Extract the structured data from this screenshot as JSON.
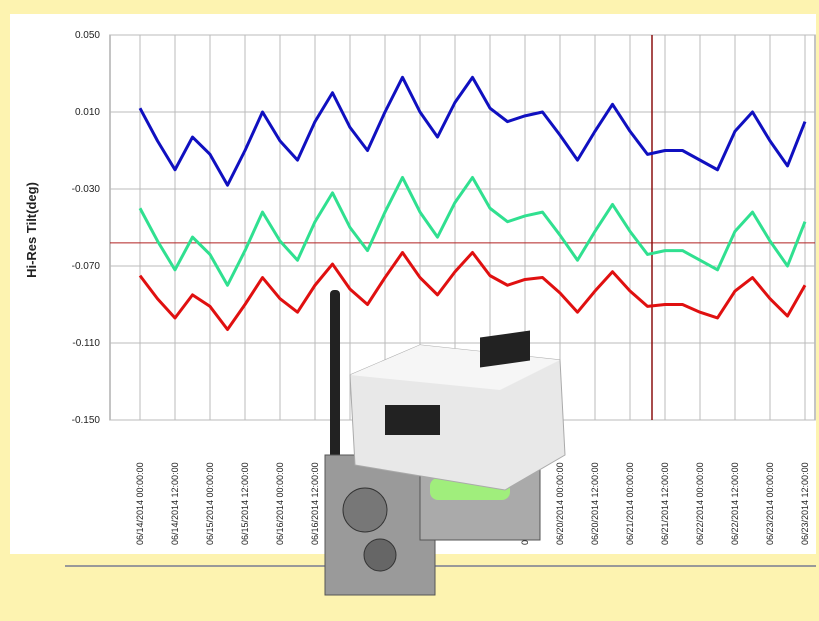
{
  "chart_data": {
    "type": "line",
    "y_label": "Hi-Res Tilt(deg)",
    "ylim": [
      -0.15,
      0.05
    ],
    "yticks": [
      {
        "value": 0.05,
        "label": "0.050"
      },
      {
        "value": 0.01,
        "label": "0.010"
      },
      {
        "value": -0.03,
        "label": "-0.030"
      },
      {
        "value": -0.07,
        "label": "-0.070"
      },
      {
        "value": -0.11,
        "label": "-0.110"
      },
      {
        "value": -0.15,
        "label": "-0.150"
      }
    ],
    "grid": true,
    "hline": -0.058,
    "x": [
      "06/14/2014 00:00:00",
      "06/14/2014 06:00:00",
      "06/14/2014 12:00:00",
      "06/14/2014 18:00:00",
      "06/15/2014 00:00:00",
      "06/15/2014 06:00:00",
      "06/15/2014 12:00:00",
      "06/15/2014 18:00:00",
      "06/16/2014 00:00:00",
      "06/16/2014 06:00:00",
      "06/16/2014 12:00:00",
      "06/16/2014 18:00:00",
      "06/17/2014 00:00:00",
      "06/17/2014 06:00:00",
      "06/17/2014 12:00:00",
      "06/17/2014 18:00:00",
      "06/18/2014 00:00:00",
      "06/18/2014 06:00:00",
      "06/18/2014 12:00:00",
      "06/18/2014 18:00:00",
      "06/19/2014 00:00:00",
      "06/19/2014 06:00:00",
      "06/19/2014 12:00:00",
      "06/19/2014 18:00:00",
      "06/20/2014 00:00:00",
      "06/20/2014 06:00:00",
      "06/20/2014 12:00:00",
      "06/20/2014 18:00:00",
      "06/21/2014 00:00:00",
      "06/21/2014 06:00:00",
      "06/21/2014 12:00:00",
      "06/21/2014 18:00:00",
      "06/22/2014 00:00:00",
      "06/22/2014 06:00:00",
      "06/22/2014 12:00:00",
      "06/22/2014 18:00:00",
      "06/23/2014 00:00:00",
      "06/23/2014 06:00:00",
      "06/23/2014 12:00:00"
    ],
    "xticks": [
      "06/14/2014 00:00:00",
      "06/14/2014 12:00:00",
      "06/15/2014 00:00:00",
      "06/15/2014 12:00:00",
      "06/16/2014 00:00:00",
      "06/16/2014 12:00:00",
      null,
      null,
      null,
      null,
      null,
      "06/19/2014 12:00:00",
      "06/20/2014 00:00:00",
      "06/20/2014 12:00:00",
      "06/21/2014 00:00:00",
      "06/21/2014 12:00:00",
      "06/22/2014 00:00:00",
      "06/22/2014 12:00:00",
      "06/23/2014 00:00:00",
      "06/23/2014 12:00:00"
    ],
    "series": [
      {
        "color": "#1010c0",
        "values": [
          0.012,
          -0.005,
          -0.02,
          -0.003,
          -0.012,
          -0.028,
          -0.01,
          0.01,
          -0.005,
          -0.015,
          0.005,
          0.02,
          0.002,
          -0.01,
          0.01,
          0.028,
          0.01,
          -0.003,
          0.015,
          0.028,
          0.012,
          0.005,
          0.008,
          0.01,
          -0.002,
          -0.015,
          0.0,
          0.014,
          0.0,
          -0.012,
          -0.01,
          -0.01,
          -0.015,
          -0.02,
          0.0,
          0.01,
          -0.005,
          -0.018,
          0.005
        ]
      },
      {
        "color": "#30e090",
        "values": [
          -0.04,
          -0.057,
          -0.072,
          -0.055,
          -0.064,
          -0.08,
          -0.062,
          -0.042,
          -0.057,
          -0.067,
          -0.047,
          -0.032,
          -0.05,
          -0.062,
          -0.042,
          -0.024,
          -0.042,
          -0.055,
          -0.037,
          -0.024,
          -0.04,
          -0.047,
          -0.044,
          -0.042,
          -0.054,
          -0.067,
          -0.052,
          -0.038,
          -0.052,
          -0.064,
          -0.062,
          -0.062,
          -0.067,
          -0.072,
          -0.052,
          -0.042,
          -0.057,
          -0.07,
          -0.047
        ]
      },
      {
        "color": "#e01010",
        "values": [
          -0.075,
          -0.087,
          -0.097,
          -0.085,
          -0.091,
          -0.103,
          -0.09,
          -0.076,
          -0.087,
          -0.094,
          -0.08,
          -0.069,
          -0.082,
          -0.09,
          -0.076,
          -0.063,
          -0.076,
          -0.085,
          -0.073,
          -0.063,
          -0.075,
          -0.08,
          -0.077,
          -0.076,
          -0.084,
          -0.094,
          -0.083,
          -0.073,
          -0.083,
          -0.091,
          -0.09,
          -0.09,
          -0.094,
          -0.097,
          -0.083,
          -0.076,
          -0.087,
          -0.096,
          -0.08
        ]
      }
    ]
  }
}
